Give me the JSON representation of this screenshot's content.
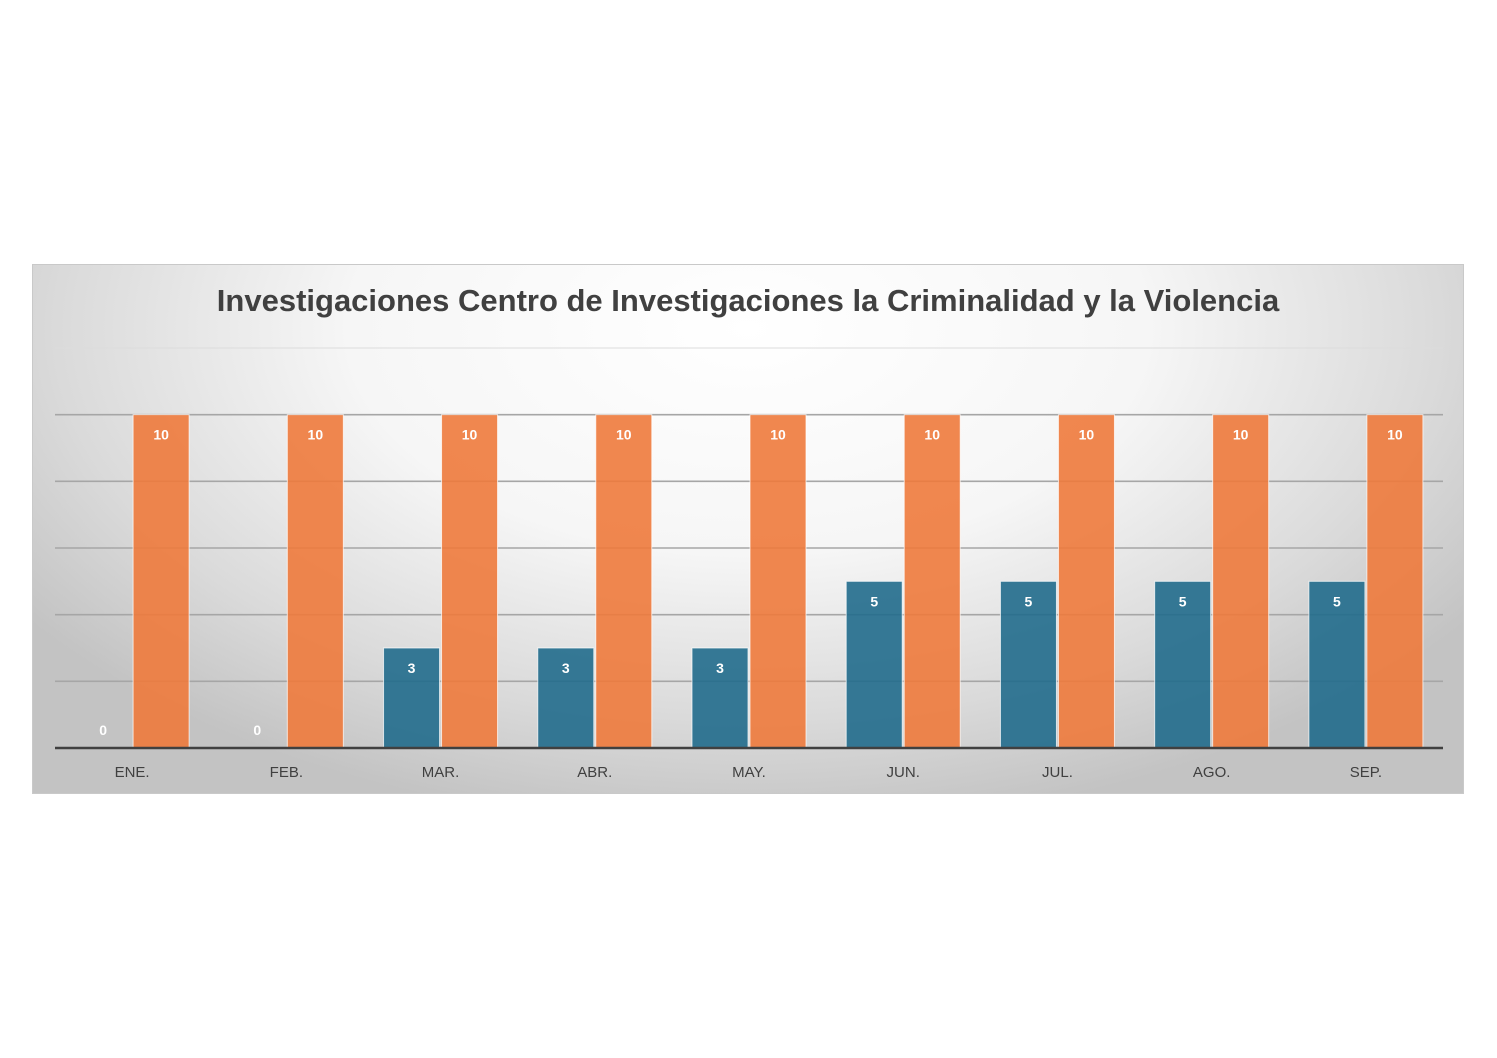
{
  "chart_data": {
    "type": "bar",
    "title": "Investigaciones Centro de Investigaciones la Criminalidad y la Violencia",
    "categories": [
      "ENE.",
      "FEB.",
      "MAR.",
      "ABR.",
      "MAY.",
      "JUN.",
      "JUL.",
      "AGO.",
      "SEP."
    ],
    "series": [
      {
        "values": [
          0,
          0,
          3,
          3,
          3,
          5,
          5,
          5,
          5
        ],
        "color": "#216b8c"
      },
      {
        "values": [
          10,
          10,
          10,
          10,
          10,
          10,
          10,
          10,
          10
        ],
        "color": "#ee7a3c"
      }
    ],
    "ylim": [
      0,
      12
    ],
    "grid": true,
    "data_labels": true,
    "legend": "none"
  }
}
